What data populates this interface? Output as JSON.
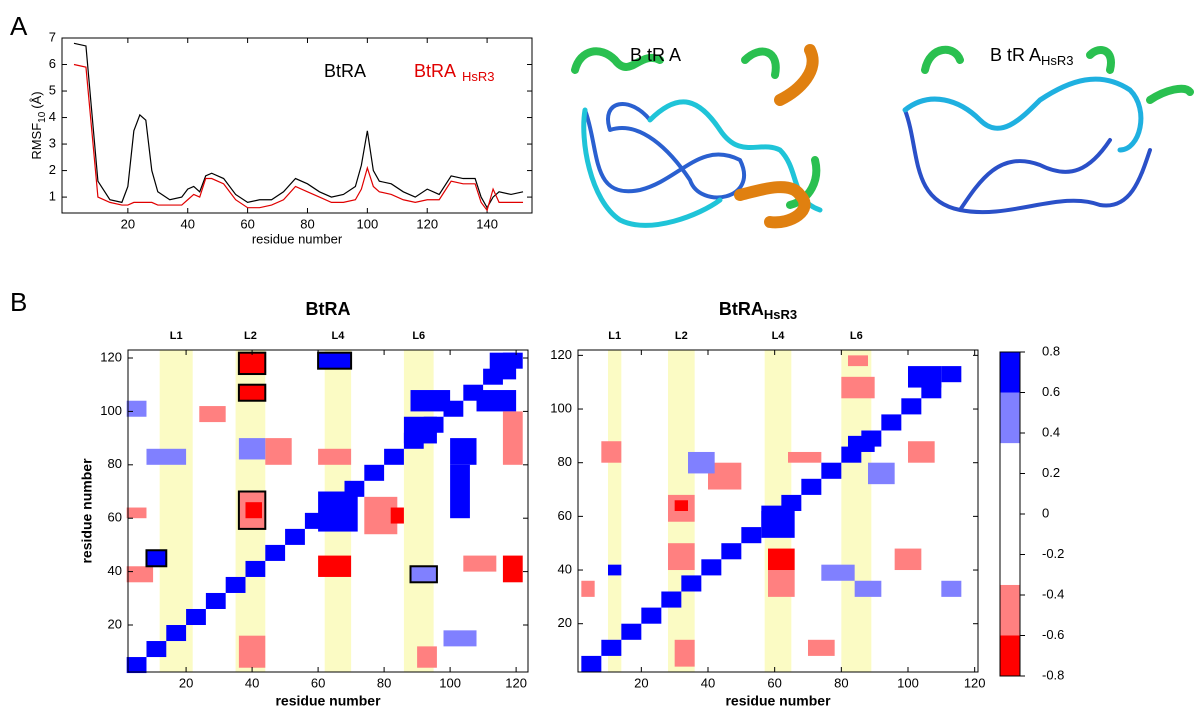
{
  "panel_labels": [
    "A",
    "B"
  ],
  "structures": [
    {
      "label": "B tR A"
    },
    {
      "label": "B tR A",
      "sub": "HsR3"
    }
  ],
  "chart_data": [
    {
      "type": "line",
      "ylabel": "RMSF",
      "ylabel_sub": "10",
      "ylabel_unit": "(Å)",
      "xlabel": "residue number",
      "xlim": [
        -2,
        155
      ],
      "xticks": [
        20,
        40,
        60,
        80,
        100,
        120,
        140
      ],
      "ylim": [
        0.4,
        7
      ],
      "yticks": [
        1,
        2,
        3,
        4,
        5,
        6,
        7
      ],
      "x": [
        2,
        6,
        10,
        14,
        18,
        20,
        22,
        24,
        26,
        28,
        30,
        34,
        38,
        40,
        42,
        44,
        46,
        48,
        52,
        56,
        60,
        64,
        68,
        72,
        76,
        80,
        84,
        88,
        92,
        96,
        98,
        100,
        102,
        104,
        108,
        112,
        116,
        120,
        124,
        128,
        132,
        136,
        138,
        140,
        142,
        144,
        148,
        152
      ],
      "series": [
        {
          "name": "BtRA",
          "color": "#000000",
          "values": [
            6.8,
            6.7,
            1.6,
            0.9,
            0.8,
            1.4,
            3.5,
            4.1,
            3.9,
            2.0,
            1.2,
            0.9,
            1.0,
            1.3,
            1.4,
            1.2,
            1.8,
            1.9,
            1.7,
            1.1,
            0.8,
            0.9,
            0.9,
            1.2,
            1.7,
            1.5,
            1.2,
            1.0,
            1.1,
            1.4,
            2.2,
            3.5,
            2.0,
            1.6,
            1.5,
            1.2,
            1.0,
            1.3,
            1.1,
            1.8,
            1.7,
            1.7,
            1.0,
            0.6,
            1.0,
            1.2,
            1.1,
            1.2
          ]
        },
        {
          "name": "BtRA",
          "name_sub": "HsR3",
          "color": "#e00000",
          "values": [
            6.0,
            5.9,
            1.0,
            0.8,
            0.7,
            0.7,
            0.8,
            0.8,
            0.8,
            0.8,
            0.7,
            0.7,
            0.7,
            0.9,
            1.1,
            1.0,
            1.7,
            1.7,
            1.5,
            0.9,
            0.6,
            0.6,
            0.7,
            0.9,
            1.4,
            1.2,
            1.0,
            0.8,
            0.8,
            0.9,
            1.3,
            2.1,
            1.4,
            1.2,
            1.1,
            0.9,
            0.8,
            0.9,
            0.9,
            1.6,
            1.5,
            1.5,
            0.8,
            0.5,
            1.3,
            0.8,
            0.8,
            0.8
          ]
        }
      ]
    },
    {
      "type": "heatmap",
      "title": "BtRA",
      "xlabel": "residue number",
      "ylabel": "residue number",
      "xlim": [
        2.4,
        123.6
      ],
      "xticks": [
        20,
        40,
        60,
        80,
        100,
        120
      ],
      "ylim": [
        2.4,
        123
      ],
      "yticks": [
        20,
        40,
        60,
        80,
        100,
        120
      ],
      "bands": [
        {
          "label": "L1",
          "range": [
            12,
            22
          ]
        },
        {
          "label": "L2",
          "range": [
            35,
            44
          ]
        },
        {
          "label": "L4",
          "range": [
            62,
            70
          ]
        },
        {
          "label": "L6",
          "range": [
            86,
            95
          ]
        }
      ],
      "regions": [
        [
          2,
          8,
          2,
          8,
          0.8
        ],
        [
          8,
          14,
          8,
          14,
          0.8
        ],
        [
          14,
          20,
          14,
          20,
          0.8
        ],
        [
          20,
          26,
          20,
          26,
          0.8
        ],
        [
          26,
          32,
          26,
          32,
          0.8
        ],
        [
          32,
          38,
          32,
          38,
          0.8
        ],
        [
          38,
          44,
          38,
          44,
          0.8
        ],
        [
          44,
          50,
          44,
          50,
          0.8
        ],
        [
          50,
          56,
          50,
          56,
          0.8
        ],
        [
          56,
          62,
          56,
          62,
          0.8
        ],
        [
          62,
          68,
          62,
          68,
          0.8
        ],
        [
          68,
          74,
          68,
          74,
          0.8
        ],
        [
          74,
          80,
          74,
          80,
          0.8
        ],
        [
          80,
          86,
          80,
          86,
          0.8
        ],
        [
          86,
          92,
          86,
          92,
          0.8
        ],
        [
          92,
          98,
          92,
          98,
          0.8
        ],
        [
          98,
          104,
          98,
          104,
          0.8
        ],
        [
          104,
          110,
          104,
          110,
          0.8
        ],
        [
          110,
          116,
          110,
          116,
          0.8
        ],
        [
          116,
          122,
          116,
          122,
          0.8
        ],
        [
          60,
          72,
          55,
          70,
          0.8
        ],
        [
          86,
          96,
          88,
          98,
          0.7
        ],
        [
          108,
          120,
          100,
          108,
          0.7
        ],
        [
          112,
          120,
          112,
          122,
          0.7
        ],
        [
          88,
          100,
          100,
          108,
          0.7
        ],
        [
          100,
          108,
          80,
          90,
          0.7
        ],
        [
          60,
          70,
          116,
          122,
          0.8
        ],
        [
          36,
          44,
          114,
          122,
          -0.7
        ],
        [
          36,
          44,
          104,
          110,
          -0.7
        ],
        [
          36,
          44,
          56,
          70,
          -0.5
        ],
        [
          38,
          43,
          60,
          66,
          -0.7
        ],
        [
          60,
          70,
          38,
          46,
          -0.7
        ],
        [
          60,
          70,
          80,
          86,
          -0.5
        ],
        [
          2,
          10,
          36,
          42,
          -0.5
        ],
        [
          2,
          8,
          60,
          64,
          -0.5
        ],
        [
          8,
          14,
          42,
          48,
          0.7
        ],
        [
          88,
          96,
          36,
          42,
          0.6
        ],
        [
          74,
          84,
          54,
          68,
          -0.5
        ],
        [
          82,
          86,
          58,
          64,
          -0.7
        ],
        [
          116,
          122,
          36,
          46,
          -0.7
        ],
        [
          104,
          114,
          40,
          46,
          -0.5
        ],
        [
          36,
          44,
          4,
          16,
          -0.5
        ],
        [
          90,
          96,
          4,
          12,
          -0.5
        ],
        [
          98,
          108,
          12,
          18,
          0.5
        ],
        [
          2,
          8,
          98,
          104,
          0.5
        ],
        [
          24,
          32,
          96,
          102,
          -0.5
        ],
        [
          44,
          52,
          80,
          90,
          -0.5
        ],
        [
          100,
          106,
          60,
          80,
          0.7
        ],
        [
          116,
          122,
          80,
          100,
          -0.5
        ],
        [
          8,
          20,
          80,
          86,
          0.5
        ],
        [
          36,
          44,
          82,
          90,
          0.5
        ]
      ],
      "highlight_boxes": [
        [
          36,
          44,
          114,
          122
        ],
        [
          36,
          44,
          104,
          110
        ],
        [
          36,
          44,
          56,
          70
        ],
        [
          60,
          70,
          116,
          122
        ],
        [
          8,
          14,
          42,
          48
        ],
        [
          88,
          96,
          36,
          42
        ]
      ]
    },
    {
      "type": "heatmap",
      "title": "BtRA",
      "title_sub": "HsR3",
      "xlabel": "residue number",
      "xlim": [
        1,
        121
      ],
      "xticks": [
        20,
        40,
        60,
        80,
        100,
        120
      ],
      "ylim": [
        2,
        122
      ],
      "yticks": [
        20,
        40,
        60,
        80,
        100,
        120
      ],
      "bands": [
        {
          "label": "L1",
          "range": [
            10,
            14
          ]
        },
        {
          "label": "L2",
          "range": [
            28,
            36
          ]
        },
        {
          "label": "L4",
          "range": [
            57,
            65
          ]
        },
        {
          "label": "L6",
          "range": [
            80,
            89
          ]
        }
      ],
      "regions": [
        [
          2,
          8,
          2,
          8,
          0.8
        ],
        [
          8,
          14,
          8,
          14,
          0.8
        ],
        [
          14,
          20,
          14,
          20,
          0.8
        ],
        [
          20,
          26,
          20,
          26,
          0.8
        ],
        [
          26,
          32,
          26,
          32,
          0.8
        ],
        [
          32,
          38,
          32,
          38,
          0.8
        ],
        [
          38,
          44,
          38,
          44,
          0.8
        ],
        [
          44,
          50,
          44,
          50,
          0.8
        ],
        [
          50,
          56,
          50,
          56,
          0.8
        ],
        [
          56,
          62,
          56,
          62,
          0.8
        ],
        [
          62,
          68,
          62,
          68,
          0.8
        ],
        [
          68,
          74,
          68,
          74,
          0.8
        ],
        [
          74,
          80,
          74,
          80,
          0.8
        ],
        [
          80,
          86,
          80,
          86,
          0.8
        ],
        [
          86,
          92,
          86,
          92,
          0.8
        ],
        [
          92,
          98,
          92,
          98,
          0.8
        ],
        [
          98,
          104,
          98,
          104,
          0.8
        ],
        [
          104,
          110,
          104,
          110,
          0.8
        ],
        [
          110,
          116,
          110,
          116,
          0.8
        ],
        [
          56,
          66,
          52,
          64,
          0.8
        ],
        [
          100,
          110,
          108,
          116,
          0.7
        ],
        [
          82,
          90,
          84,
          90,
          0.7
        ],
        [
          74,
          84,
          36,
          42,
          0.6
        ],
        [
          84,
          92,
          30,
          36,
          0.6
        ],
        [
          88,
          96,
          72,
          80,
          0.6
        ],
        [
          10,
          14,
          38,
          42,
          0.7
        ],
        [
          58,
          66,
          30,
          40,
          -0.5
        ],
        [
          58,
          66,
          40,
          48,
          -0.7
        ],
        [
          28,
          36,
          58,
          68,
          -0.5
        ],
        [
          30,
          34,
          62,
          66,
          -0.7
        ],
        [
          28,
          36,
          40,
          50,
          -0.5
        ],
        [
          40,
          50,
          70,
          80,
          -0.5
        ],
        [
          80,
          90,
          104,
          112,
          -0.5
        ],
        [
          82,
          88,
          116,
          120,
          -0.5
        ],
        [
          64,
          74,
          80,
          84,
          -0.5
        ],
        [
          8,
          14,
          80,
          88,
          -0.5
        ],
        [
          2,
          6,
          30,
          36,
          -0.5
        ],
        [
          96,
          104,
          40,
          48,
          -0.5
        ],
        [
          30,
          36,
          4,
          14,
          -0.5
        ],
        [
          110,
          116,
          30,
          36,
          0.5
        ],
        [
          34,
          42,
          76,
          84,
          0.5
        ],
        [
          100,
          108,
          80,
          88,
          -0.5
        ],
        [
          70,
          78,
          8,
          14,
          -0.5
        ]
      ]
    },
    {
      "type": "colorbar",
      "bins": [
        -0.8,
        -0.6,
        -0.35,
        0.35,
        0.6,
        0.8
      ],
      "colors": [
        "#ff0000",
        "#ff8080",
        "#ffffff",
        "#8080ff",
        "#0000ff"
      ],
      "ylim": [
        -0.8,
        0.8
      ],
      "yticks": [
        0.8,
        0.6,
        0.4,
        0.2,
        0,
        -0.2,
        -0.4,
        -0.6,
        -0.8
      ]
    }
  ]
}
